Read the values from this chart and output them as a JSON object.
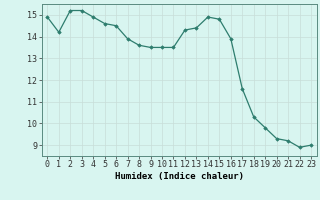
{
  "x": [
    0,
    1,
    2,
    3,
    4,
    5,
    6,
    7,
    8,
    9,
    10,
    11,
    12,
    13,
    14,
    15,
    16,
    17,
    18,
    19,
    20,
    21,
    22,
    23
  ],
  "y": [
    14.9,
    14.2,
    15.2,
    15.2,
    14.9,
    14.6,
    14.5,
    13.9,
    13.6,
    13.5,
    13.5,
    13.5,
    14.3,
    14.4,
    14.9,
    14.8,
    13.9,
    11.6,
    10.3,
    9.8,
    9.3,
    9.2,
    8.9,
    9.0
  ],
  "line_color": "#2e7d6e",
  "marker": "D",
  "markersize": 1.8,
  "linewidth": 0.9,
  "bg_color": "#d8f5f0",
  "grid_color_major": "#c8ddd8",
  "grid_color_minor": "#e0f0ec",
  "xlabel": "Humidex (Indice chaleur)",
  "xlabel_fontsize": 6.5,
  "tick_fontsize": 6,
  "ylim": [
    8.5,
    15.5
  ],
  "xlim": [
    -0.5,
    23.5
  ],
  "yticks": [
    9,
    10,
    11,
    12,
    13,
    14,
    15
  ],
  "xticks": [
    0,
    1,
    2,
    3,
    4,
    5,
    6,
    7,
    8,
    9,
    10,
    11,
    12,
    13,
    14,
    15,
    16,
    17,
    18,
    19,
    20,
    21,
    22,
    23
  ]
}
